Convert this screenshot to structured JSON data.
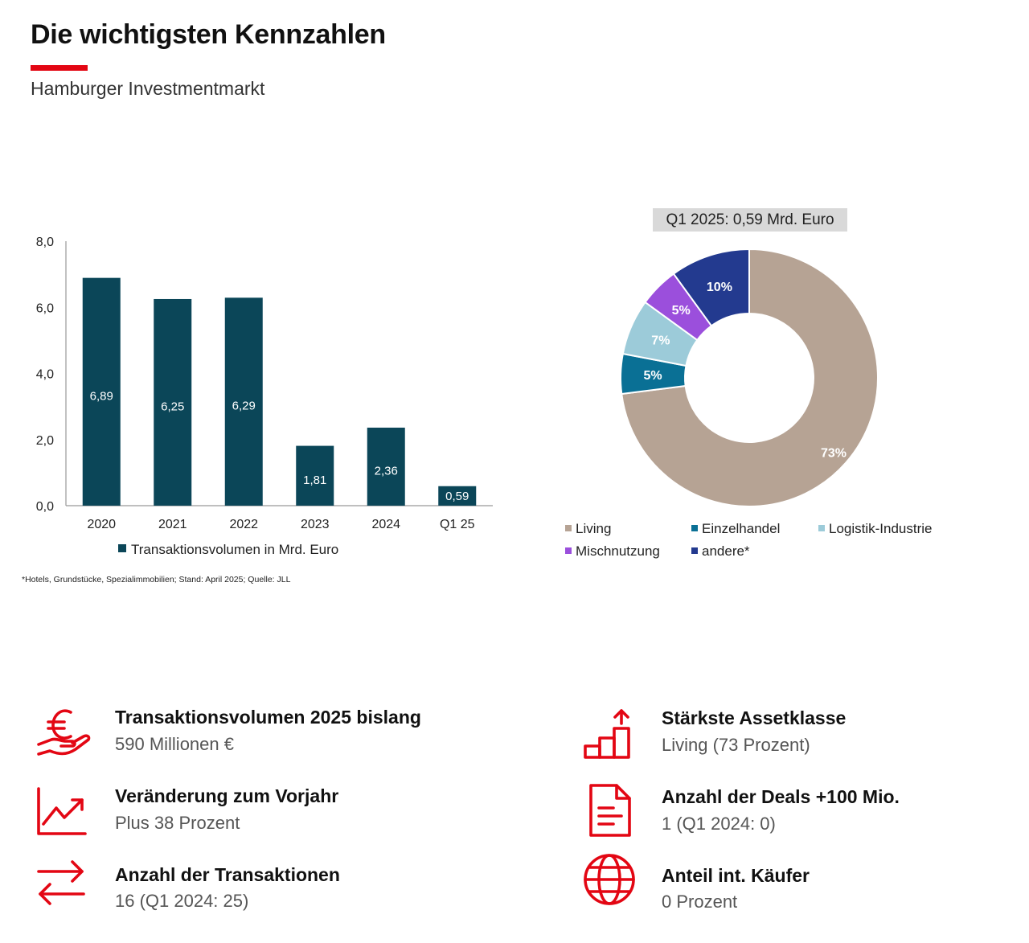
{
  "header": {
    "title": "Die wichtigsten Kennzahlen",
    "subtitle": "Hamburger Investmentmarkt"
  },
  "colors": {
    "accent": "#e30613",
    "bar": "#0b4658",
    "living": "#b6a394",
    "einzelhandel": "#0a7095",
    "logistik": "#9ccbd9",
    "mischnutzung": "#9b4fdc",
    "andere": "#233a8f"
  },
  "chart_data": [
    {
      "type": "bar",
      "categories": [
        "2020",
        "2021",
        "2022",
        "2023",
        "2024",
        "Q1 25"
      ],
      "values": [
        6.89,
        6.25,
        6.29,
        1.81,
        2.36,
        0.59
      ],
      "value_labels": [
        "6,89",
        "6,25",
        "6,29",
        "1,81",
        "2,36",
        "0,59"
      ],
      "y_tick_labels": [
        "0,0",
        "2,0",
        "4,0",
        "6,0",
        "8,0"
      ],
      "ylim": [
        0,
        8
      ],
      "series": [
        {
          "name": "Transaktionsvolumen in Mrd. Euro",
          "values": [
            6.89,
            6.25,
            6.29,
            1.81,
            2.36,
            0.59
          ]
        }
      ],
      "legend": "bottom",
      "grid": false,
      "footnote": "*Hotels, Grundstücke, Spezialimmobilien; Stand: April 2025; Quelle: JLL"
    },
    {
      "type": "pie",
      "title": "Q1 2025: 0,59 Mrd. Euro",
      "slices": [
        {
          "name": "Living",
          "value": 73,
          "label": "73%"
        },
        {
          "name": "Einzelhandel",
          "value": 5,
          "label": "5%"
        },
        {
          "name": "Logistik-Industrie",
          "value": 7,
          "label": "7%"
        },
        {
          "name": "Mischnutzung",
          "value": 5,
          "label": "5%"
        },
        {
          "name": "andere*",
          "value": 10,
          "label": "10%"
        }
      ],
      "legend": "bottom"
    }
  ],
  "kpis": [
    {
      "icon": "euro-hand-icon",
      "label": "Transaktionsvolumen 2025 bislang",
      "value": "590 Millionen €"
    },
    {
      "icon": "trend-up-chart-icon",
      "label": "Veränderung zum Vorjahr",
      "value": "Plus 38 Prozent"
    },
    {
      "icon": "exchange-arrows-icon",
      "label": "Anzahl der Transaktionen",
      "value": "16 (Q1 2024: 25)"
    },
    {
      "icon": "growth-bars-icon",
      "label": "Stärkste Assetklasse",
      "value": "Living (73 Prozent)"
    },
    {
      "icon": "document-icon",
      "label": "Anzahl der Deals +100 Mio.",
      "value": "1 (Q1 2024: 0)"
    },
    {
      "icon": "globe-icon",
      "label": "Anteil int. Käufer",
      "value": "0 Prozent"
    }
  ]
}
